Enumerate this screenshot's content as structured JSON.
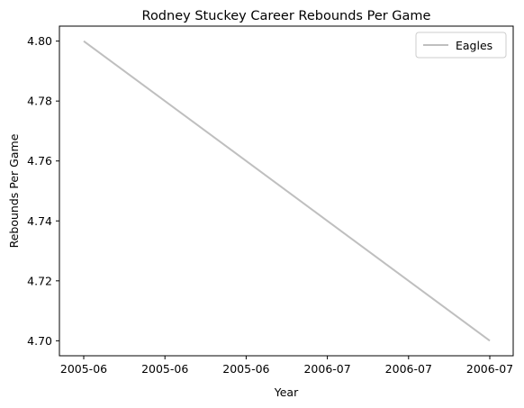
{
  "chart_data": {
    "type": "line",
    "title": "Rodney Stuckey Career Rebounds Per Game",
    "xlabel": "Year",
    "ylabel": "Rebounds Per Game",
    "x": [
      "2005-06",
      "2006-07"
    ],
    "x_tick_labels": [
      "2005-06",
      "2005-06",
      "2005-06",
      "2006-07",
      "2006-07",
      "2006-07"
    ],
    "y_ticks": [
      4.7,
      4.72,
      4.74,
      4.76,
      4.78,
      4.8
    ],
    "y_tick_labels": [
      "4.70",
      "4.72",
      "4.74",
      "4.76",
      "4.78",
      "4.80"
    ],
    "ylim": [
      4.695,
      4.805
    ],
    "grid": false,
    "legend": {
      "position": "top-right"
    },
    "series": [
      {
        "name": "Eagles",
        "values": [
          4.8,
          4.7
        ],
        "color": "#bfbfbf"
      }
    ]
  }
}
